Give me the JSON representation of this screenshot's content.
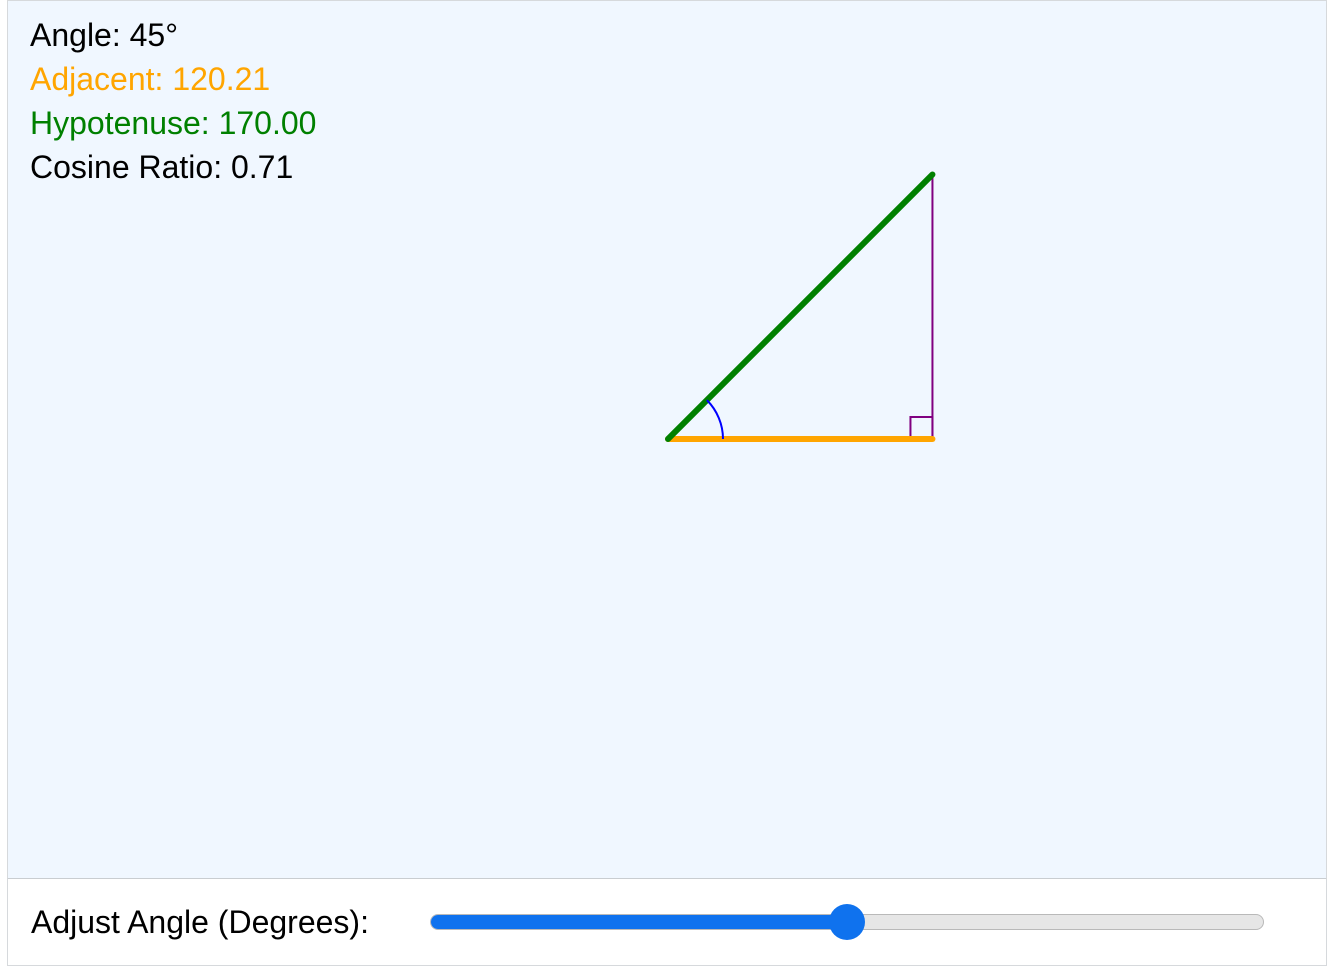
{
  "readouts": {
    "angle": "Angle: 45°",
    "adjacent": "Adjacent: 120.21",
    "hypotenuse": "Hypotenuse: 170.00",
    "cosine": "Cosine Ratio: 0.71"
  },
  "slider": {
    "label": "Adjust Angle (Degrees):",
    "value": 45,
    "min": 0,
    "max": 90
  },
  "triangle": {
    "angle_degrees": 45,
    "hypotenuse": 170.0,
    "adjacent": 120.21
  },
  "colors": {
    "adjacent": "#ffa500",
    "hypotenuse": "#008000",
    "opposite": "#800080",
    "angle_arc": "#0000ff",
    "right_angle_marker": "#800080",
    "slider_accent": "#0f72ee",
    "panel_background": "#f0f7ff"
  }
}
